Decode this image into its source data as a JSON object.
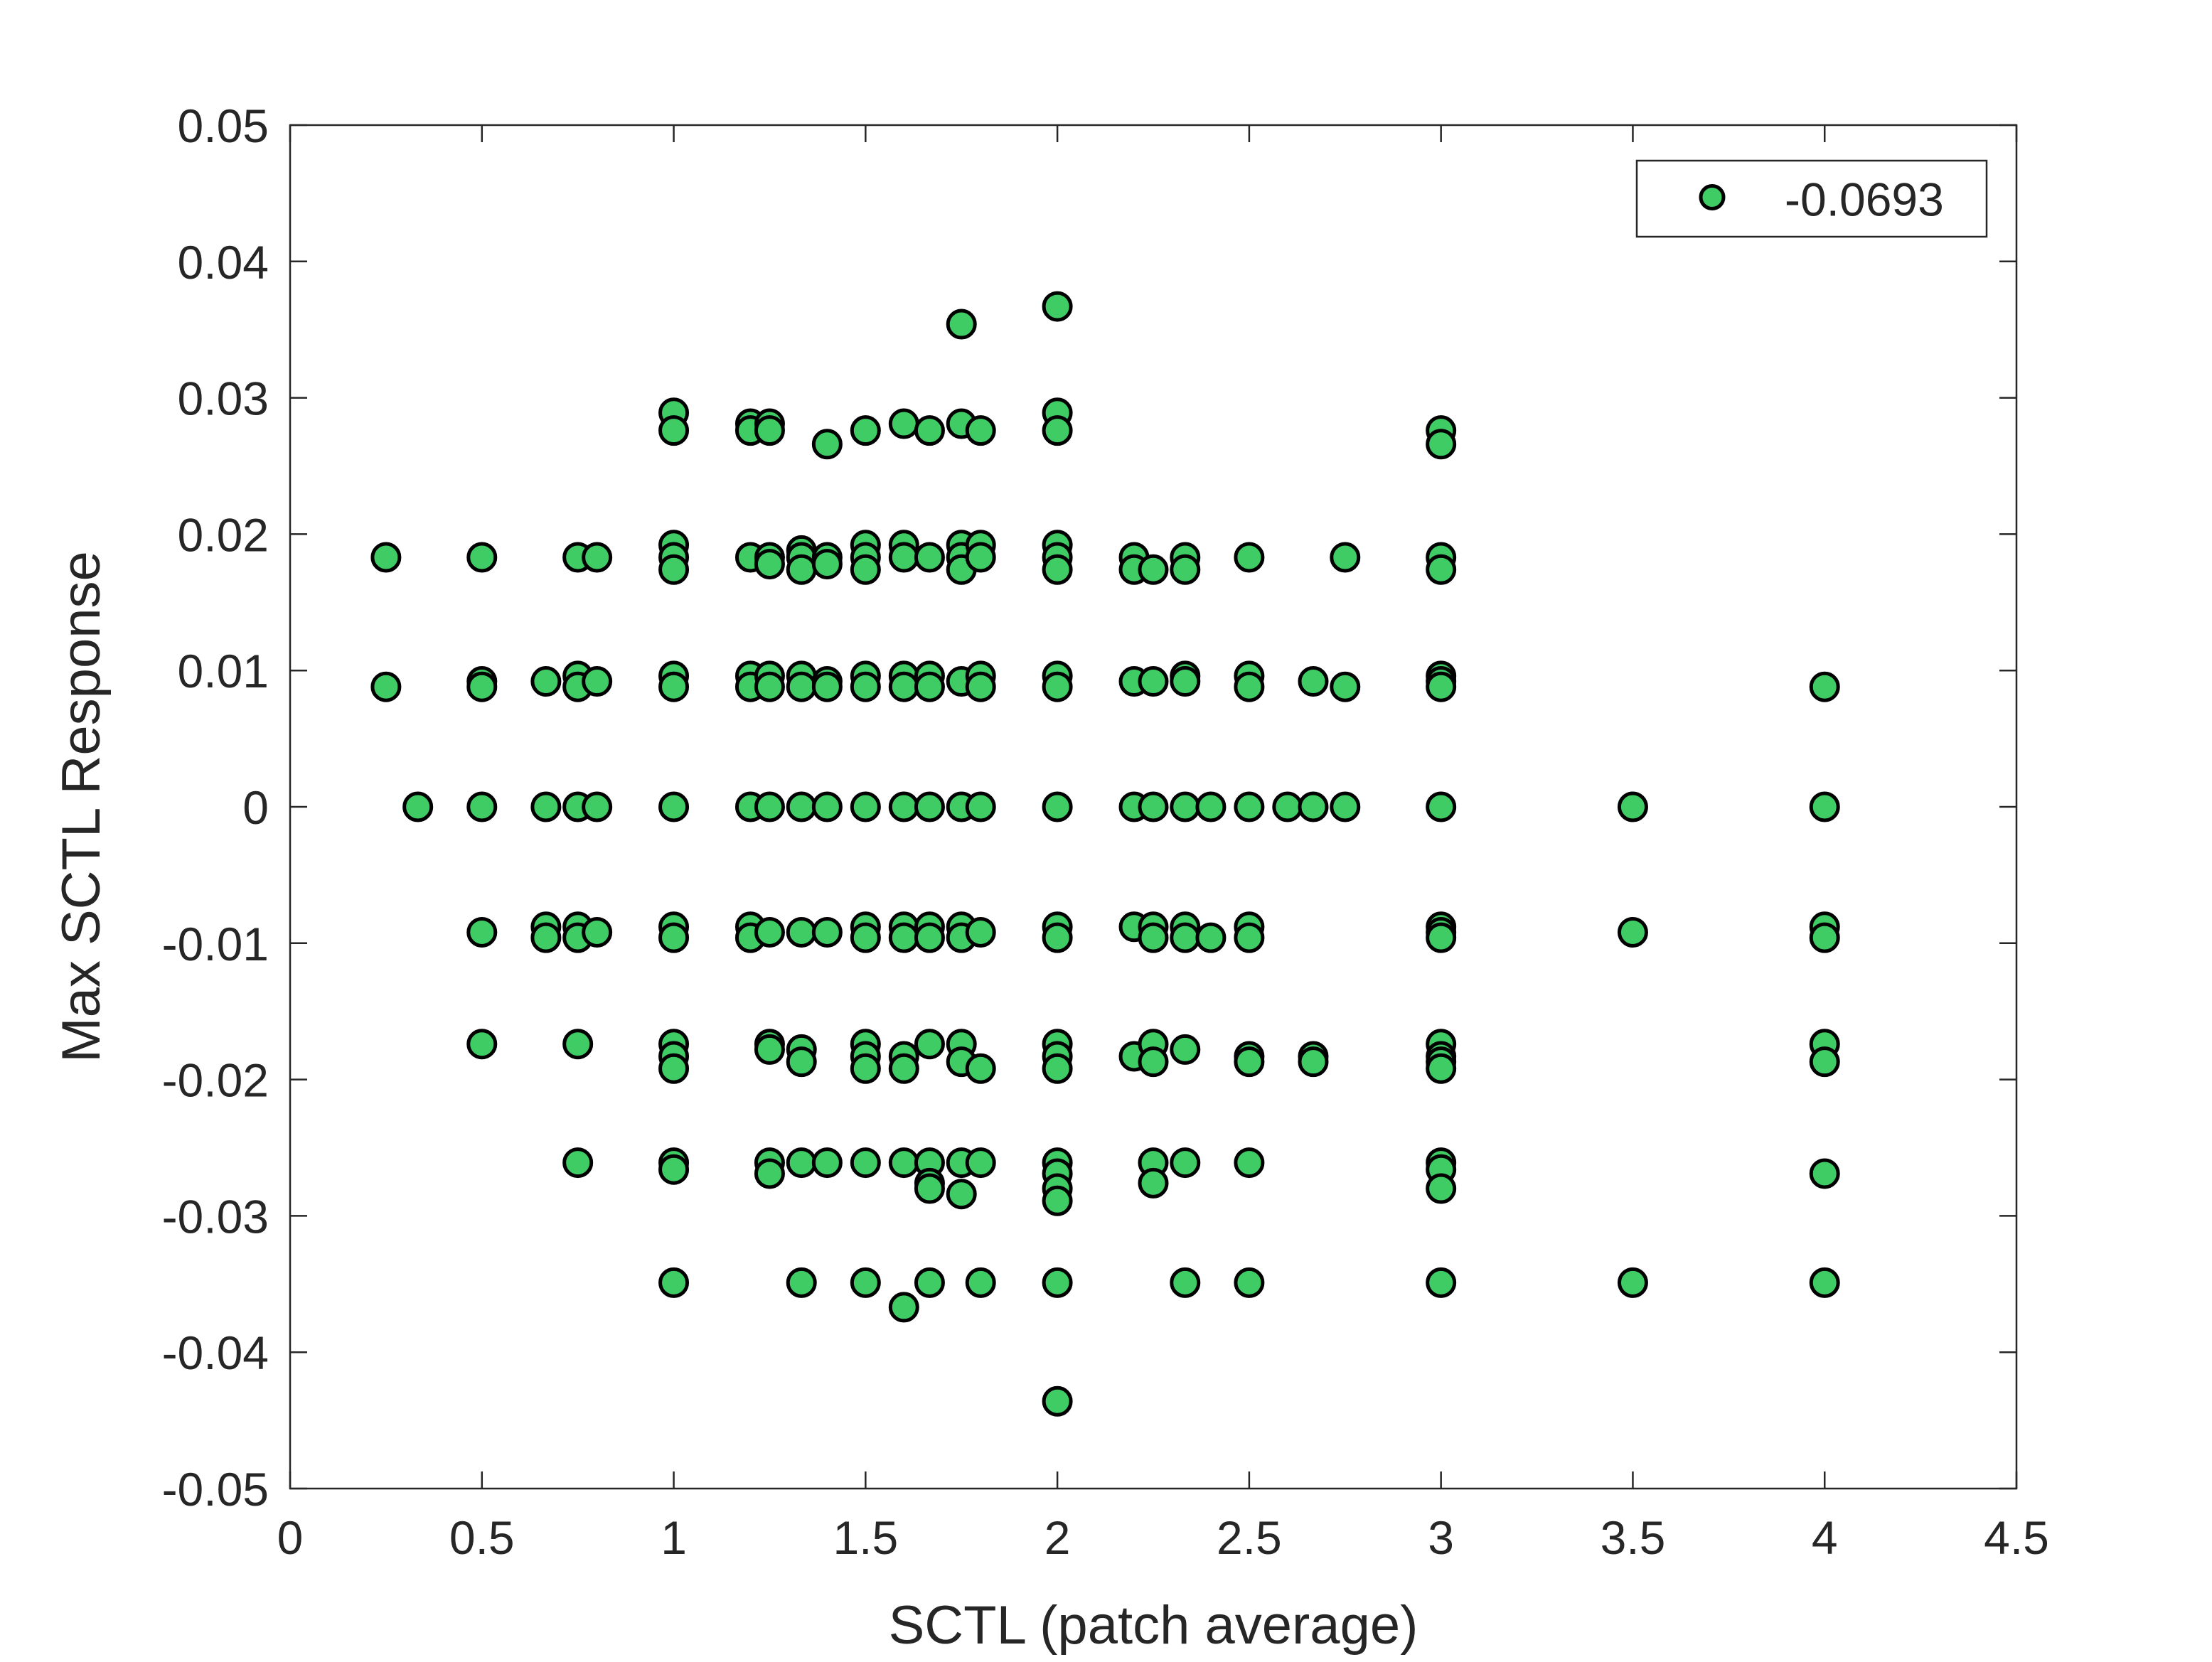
{
  "chart_data": {
    "type": "scatter",
    "xlabel": "SCTL (patch average)",
    "ylabel": "Max SCTL Response",
    "xlim": [
      0,
      4.5
    ],
    "ylim": [
      -0.05,
      0.05
    ],
    "x_ticks": [
      "0",
      "0.5",
      "1",
      "1.5",
      "2",
      "2.5",
      "3",
      "3.5",
      "4",
      "4.5"
    ],
    "y_ticks": [
      "0.05",
      "0.04",
      "0.03",
      "0.02",
      "0.01",
      "0",
      "-0.01",
      "-0.02",
      "-0.03",
      "-0.04",
      "-0.05"
    ],
    "grid": false,
    "legend_position": "top-right",
    "marker_color": "#3fcc65",
    "marker_edge": "#000000",
    "series": [
      {
        "name": "-0.0693",
        "points": [
          [
            0.25,
            0.0183
          ],
          [
            0.25,
            0.0088
          ],
          [
            0.333,
            0.0
          ],
          [
            0.5,
            0.0183
          ],
          [
            0.5,
            0.0092
          ],
          [
            0.5,
            0.0088
          ],
          [
            0.5,
            0.0
          ],
          [
            0.5,
            -0.0092
          ],
          [
            0.5,
            -0.0174
          ],
          [
            0.667,
            0.0092
          ],
          [
            0.667,
            0.0
          ],
          [
            0.667,
            -0.0088
          ],
          [
            0.667,
            -0.0096
          ],
          [
            0.75,
            0.0183
          ],
          [
            0.75,
            0.0096
          ],
          [
            0.75,
            0.0088
          ],
          [
            0.75,
            0.0
          ],
          [
            0.75,
            -0.0088
          ],
          [
            0.75,
            -0.0096
          ],
          [
            0.75,
            -0.0174
          ],
          [
            0.75,
            -0.0261
          ],
          [
            0.8,
            0.0183
          ],
          [
            0.8,
            0.0092
          ],
          [
            0.8,
            0.0
          ],
          [
            0.8,
            -0.0092
          ],
          [
            1.0,
            0.0289
          ],
          [
            1.0,
            0.0276
          ],
          [
            1.0,
            0.0192
          ],
          [
            1.0,
            0.0183
          ],
          [
            1.0,
            0.0174
          ],
          [
            1.0,
            0.0096
          ],
          [
            1.0,
            0.0088
          ],
          [
            1.0,
            0.0
          ],
          [
            1.0,
            -0.0088
          ],
          [
            1.0,
            -0.0096
          ],
          [
            1.0,
            -0.0174
          ],
          [
            1.0,
            -0.0183
          ],
          [
            1.0,
            -0.0192
          ],
          [
            1.0,
            -0.0261
          ],
          [
            1.0,
            -0.0266
          ],
          [
            1.0,
            -0.0349
          ],
          [
            1.2,
            0.0281
          ],
          [
            1.2,
            0.0276
          ],
          [
            1.2,
            0.0183
          ],
          [
            1.2,
            0.0096
          ],
          [
            1.2,
            0.0088
          ],
          [
            1.2,
            0.0
          ],
          [
            1.2,
            -0.0088
          ],
          [
            1.2,
            -0.0096
          ],
          [
            1.25,
            0.0281
          ],
          [
            1.25,
            0.0276
          ],
          [
            1.25,
            0.0183
          ],
          [
            1.25,
            0.0178
          ],
          [
            1.25,
            0.0096
          ],
          [
            1.25,
            0.0088
          ],
          [
            1.25,
            0.0
          ],
          [
            1.25,
            -0.0092
          ],
          [
            1.25,
            -0.0174
          ],
          [
            1.25,
            -0.0178
          ],
          [
            1.25,
            -0.0261
          ],
          [
            1.25,
            -0.0269
          ],
          [
            1.333,
            0.0188
          ],
          [
            1.333,
            0.0183
          ],
          [
            1.333,
            0.0174
          ],
          [
            1.333,
            0.0096
          ],
          [
            1.333,
            0.0088
          ],
          [
            1.333,
            0.0
          ],
          [
            1.333,
            -0.0092
          ],
          [
            1.333,
            -0.0178
          ],
          [
            1.333,
            -0.0187
          ],
          [
            1.333,
            -0.0261
          ],
          [
            1.333,
            -0.0349
          ],
          [
            1.4,
            0.0266
          ],
          [
            1.4,
            0.0183
          ],
          [
            1.4,
            0.0178
          ],
          [
            1.4,
            0.0092
          ],
          [
            1.4,
            0.0088
          ],
          [
            1.4,
            0.0
          ],
          [
            1.4,
            -0.0092
          ],
          [
            1.4,
            -0.0261
          ],
          [
            1.5,
            0.0276
          ],
          [
            1.5,
            0.0192
          ],
          [
            1.5,
            0.0183
          ],
          [
            1.5,
            0.0174
          ],
          [
            1.5,
            0.0096
          ],
          [
            1.5,
            0.0088
          ],
          [
            1.5,
            0.0
          ],
          [
            1.5,
            -0.0088
          ],
          [
            1.5,
            -0.0096
          ],
          [
            1.5,
            -0.0174
          ],
          [
            1.5,
            -0.0183
          ],
          [
            1.5,
            -0.0192
          ],
          [
            1.5,
            -0.0261
          ],
          [
            1.5,
            -0.0349
          ],
          [
            1.6,
            0.0281
          ],
          [
            1.6,
            0.0192
          ],
          [
            1.6,
            0.0183
          ],
          [
            1.6,
            0.0096
          ],
          [
            1.6,
            0.0088
          ],
          [
            1.6,
            0.0
          ],
          [
            1.6,
            -0.0088
          ],
          [
            1.6,
            -0.0096
          ],
          [
            1.6,
            -0.0183
          ],
          [
            1.6,
            -0.0192
          ],
          [
            1.6,
            -0.0261
          ],
          [
            1.6,
            -0.0367
          ],
          [
            1.667,
            0.0276
          ],
          [
            1.667,
            0.0183
          ],
          [
            1.667,
            0.0096
          ],
          [
            1.667,
            0.0088
          ],
          [
            1.667,
            0.0
          ],
          [
            1.667,
            -0.0088
          ],
          [
            1.667,
            -0.0096
          ],
          [
            1.667,
            -0.0174
          ],
          [
            1.667,
            -0.0261
          ],
          [
            1.667,
            -0.0276
          ],
          [
            1.667,
            -0.028
          ],
          [
            1.667,
            -0.0349
          ],
          [
            1.75,
            0.0354
          ],
          [
            1.75,
            0.0281
          ],
          [
            1.75,
            0.0192
          ],
          [
            1.75,
            0.0183
          ],
          [
            1.75,
            0.0174
          ],
          [
            1.75,
            0.0092
          ],
          [
            1.75,
            0.0
          ],
          [
            1.75,
            -0.0088
          ],
          [
            1.75,
            -0.0096
          ],
          [
            1.75,
            -0.0174
          ],
          [
            1.75,
            -0.0187
          ],
          [
            1.75,
            -0.0261
          ],
          [
            1.75,
            -0.0284
          ],
          [
            1.8,
            0.0276
          ],
          [
            1.8,
            0.0192
          ],
          [
            1.8,
            0.0183
          ],
          [
            1.8,
            0.0096
          ],
          [
            1.8,
            0.0088
          ],
          [
            1.8,
            0.0
          ],
          [
            1.8,
            -0.0092
          ],
          [
            1.8,
            -0.0192
          ],
          [
            1.8,
            -0.0261
          ],
          [
            1.8,
            -0.0349
          ],
          [
            2.0,
            0.0367
          ],
          [
            2.0,
            0.0289
          ],
          [
            2.0,
            0.0276
          ],
          [
            2.0,
            0.0192
          ],
          [
            2.0,
            0.0183
          ],
          [
            2.0,
            0.0174
          ],
          [
            2.0,
            0.0096
          ],
          [
            2.0,
            0.0088
          ],
          [
            2.0,
            0.0
          ],
          [
            2.0,
            -0.0088
          ],
          [
            2.0,
            -0.0096
          ],
          [
            2.0,
            -0.0174
          ],
          [
            2.0,
            -0.0183
          ],
          [
            2.0,
            -0.0192
          ],
          [
            2.0,
            -0.0261
          ],
          [
            2.0,
            -0.0269
          ],
          [
            2.0,
            -0.028
          ],
          [
            2.0,
            -0.0289
          ],
          [
            2.0,
            -0.0349
          ],
          [
            2.0,
            -0.0436
          ],
          [
            2.2,
            0.0183
          ],
          [
            2.2,
            0.0174
          ],
          [
            2.2,
            0.0092
          ],
          [
            2.2,
            0.0
          ],
          [
            2.2,
            -0.0088
          ],
          [
            2.2,
            -0.0183
          ],
          [
            2.25,
            0.0174
          ],
          [
            2.25,
            0.0092
          ],
          [
            2.25,
            0.0
          ],
          [
            2.25,
            -0.0088
          ],
          [
            2.25,
            -0.0096
          ],
          [
            2.25,
            -0.0174
          ],
          [
            2.25,
            -0.0187
          ],
          [
            2.25,
            -0.0261
          ],
          [
            2.25,
            -0.0276
          ],
          [
            2.333,
            0.0183
          ],
          [
            2.333,
            0.0174
          ],
          [
            2.333,
            0.0096
          ],
          [
            2.333,
            0.0092
          ],
          [
            2.333,
            0.0
          ],
          [
            2.333,
            -0.0088
          ],
          [
            2.333,
            -0.0096
          ],
          [
            2.333,
            -0.0178
          ],
          [
            2.333,
            -0.0261
          ],
          [
            2.333,
            -0.0349
          ],
          [
            2.4,
            0.0
          ],
          [
            2.4,
            -0.0096
          ],
          [
            2.5,
            0.0183
          ],
          [
            2.5,
            0.0096
          ],
          [
            2.5,
            0.0088
          ],
          [
            2.5,
            0.0
          ],
          [
            2.5,
            -0.0088
          ],
          [
            2.5,
            -0.0096
          ],
          [
            2.5,
            -0.0183
          ],
          [
            2.5,
            -0.0187
          ],
          [
            2.5,
            -0.0261
          ],
          [
            2.5,
            -0.0349
          ],
          [
            2.6,
            0.0
          ],
          [
            2.667,
            0.0092
          ],
          [
            2.667,
            0.0
          ],
          [
            2.667,
            -0.0183
          ],
          [
            2.667,
            -0.0187
          ],
          [
            2.75,
            0.0183
          ],
          [
            2.75,
            0.0088
          ],
          [
            2.75,
            0.0
          ],
          [
            3.0,
            0.0276
          ],
          [
            3.0,
            0.0266
          ],
          [
            3.0,
            0.0183
          ],
          [
            3.0,
            0.0174
          ],
          [
            3.0,
            0.0096
          ],
          [
            3.0,
            0.0092
          ],
          [
            3.0,
            0.0088
          ],
          [
            3.0,
            0.0
          ],
          [
            3.0,
            -0.0088
          ],
          [
            3.0,
            -0.0092
          ],
          [
            3.0,
            -0.0096
          ],
          [
            3.0,
            -0.0174
          ],
          [
            3.0,
            -0.0183
          ],
          [
            3.0,
            -0.0187
          ],
          [
            3.0,
            -0.0192
          ],
          [
            3.0,
            -0.0261
          ],
          [
            3.0,
            -0.0266
          ],
          [
            3.0,
            -0.028
          ],
          [
            3.0,
            -0.0349
          ],
          [
            3.5,
            0.0
          ],
          [
            3.5,
            -0.0092
          ],
          [
            3.5,
            -0.0349
          ],
          [
            4.0,
            0.0088
          ],
          [
            4.0,
            0.0
          ],
          [
            4.0,
            -0.0088
          ],
          [
            4.0,
            -0.0096
          ],
          [
            4.0,
            -0.0174
          ],
          [
            4.0,
            -0.0187
          ],
          [
            4.0,
            -0.0269
          ],
          [
            4.0,
            -0.0349
          ]
        ]
      }
    ]
  }
}
